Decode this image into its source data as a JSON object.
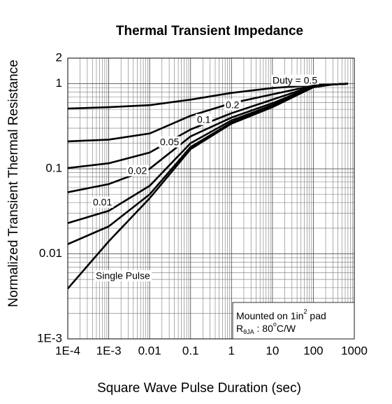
{
  "chart_data": {
    "type": "line",
    "title": "Thermal Transient Impedance",
    "x_label": "Square Wave Pulse Duration (sec)",
    "y_label": "Normalized Transient Thermal Resistance",
    "log_x": true,
    "log_y": true,
    "grid": true,
    "xlim": [
      0.0001,
      1000
    ],
    "ylim": [
      0.001,
      2
    ],
    "xticks": [
      {
        "value": 0.0001,
        "label": "1E-4"
      },
      {
        "value": 0.001,
        "label": "1E-3"
      },
      0.01,
      0.1,
      1,
      10,
      100,
      1000
    ],
    "yticks": [
      {
        "value": 0.001,
        "label": "1E-3"
      },
      0.01,
      0.1,
      1,
      2
    ],
    "x": [
      0.0001,
      0.001,
      0.01,
      0.1,
      1,
      10,
      100,
      300,
      700
    ],
    "series": [
      {
        "name": "Duty = 0.5",
        "color": "#000000",
        "values": [
          0.51,
          0.53,
          0.56,
          0.65,
          0.78,
          0.89,
          0.96,
          0.98,
          1.0
        ]
      },
      {
        "name": "0.2",
        "color": "#000000",
        "values": [
          0.21,
          0.22,
          0.26,
          0.42,
          0.59,
          0.75,
          0.95,
          0.98,
          1.0
        ]
      },
      {
        "name": "0.1",
        "color": "#000000",
        "values": [
          0.102,
          0.116,
          0.155,
          0.29,
          0.45,
          0.65,
          0.94,
          0.98,
          1.0
        ]
      },
      {
        "name": "0.05",
        "color": "#000000",
        "values": [
          0.053,
          0.066,
          0.1,
          0.24,
          0.4,
          0.59,
          0.93,
          0.98,
          1.0
        ]
      },
      {
        "name": "0.02",
        "color": "#000000",
        "values": [
          0.023,
          0.032,
          0.063,
          0.2,
          0.37,
          0.56,
          0.93,
          0.98,
          1.0
        ]
      },
      {
        "name": "0.01",
        "color": "#000000",
        "values": [
          0.013,
          0.021,
          0.05,
          0.18,
          0.35,
          0.54,
          0.91,
          0.98,
          1.0
        ]
      },
      {
        "name": "Single Pulse",
        "color": "#000000",
        "values": [
          0.0039,
          0.014,
          0.045,
          0.17,
          0.34,
          0.53,
          0.91,
          0.98,
          1.0
        ]
      }
    ],
    "note": {
      "line1": "Mounted on 1in",
      "line1_sup": "2",
      "line1_end": " pad",
      "line2": "R",
      "line2_sub": "θJA",
      "line2_mid": " : 80",
      "line2_sup": "o",
      "line2_end": "C/W"
    }
  }
}
